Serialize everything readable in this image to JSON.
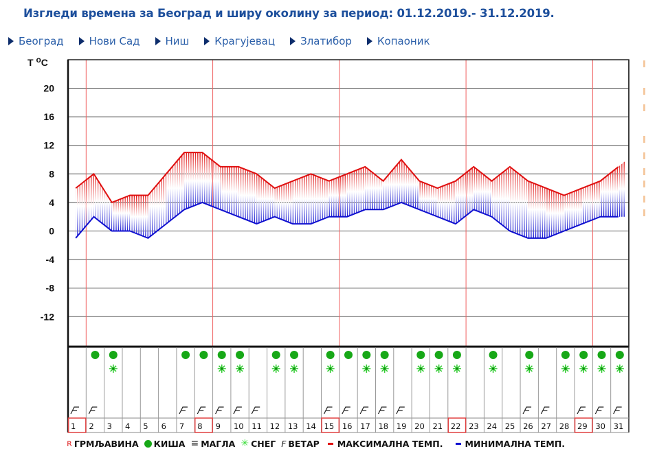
{
  "title": "Изгледи времена за Београд и ширу околину за период: 01.12.2019.- 31.12.2019.",
  "nav": {
    "items": [
      {
        "label": "Београд"
      },
      {
        "label": "Нови Сад"
      },
      {
        "label": "Ниш"
      },
      {
        "label": "Крагујевац"
      },
      {
        "label": "Златибор"
      },
      {
        "label": "Копаоник"
      }
    ]
  },
  "legend": {
    "thunder": "ГРМЉАВИНА",
    "rain": "КИША",
    "fog": "МАГЛА",
    "snow": "СНЕГ",
    "wind": "ВЕТАР",
    "max_temp": "МАКСИМАЛНА ТЕМП.",
    "min_temp": "МИНИМАЛНА ТЕМП."
  },
  "colors": {
    "title": "#1d4f9c",
    "max_line": "#e01010",
    "min_line": "#1010d0",
    "sunday_marker": "#f06060",
    "rain": "#17a817",
    "snow": "#33cc33"
  },
  "chart_data": {
    "type": "area",
    "title": "Изгледи времена за Београд и ширу околину за период: 01.12.2019.- 31.12.2019.",
    "ylabel": "T °C",
    "xlabel": "",
    "ylim": [
      -16,
      24
    ],
    "yticks": [
      20,
      16,
      12,
      8,
      4,
      0,
      -4,
      -8,
      -12
    ],
    "grid": true,
    "legend_position": "bottom",
    "categories": [
      "1",
      "2",
      "3",
      "4",
      "5",
      "6",
      "7",
      "8",
      "9",
      "10",
      "11",
      "12",
      "13",
      "14",
      "15",
      "16",
      "17",
      "18",
      "19",
      "20",
      "21",
      "22",
      "23",
      "24",
      "25",
      "26",
      "27",
      "28",
      "29",
      "30",
      "31"
    ],
    "series": [
      {
        "name": "МАКСИМАЛНА ТЕМП.",
        "values": [
          6,
          8,
          4,
          5,
          5,
          8,
          11,
          11,
          9,
          9,
          8,
          6,
          7,
          8,
          7,
          8,
          9,
          7,
          10,
          7,
          6,
          7,
          9,
          7,
          9,
          7,
          6,
          5,
          6,
          7,
          9
        ]
      },
      {
        "name": "МИНИМАЛНА ТЕМП.",
        "values": [
          -1,
          2,
          0,
          0,
          -1,
          1,
          3,
          4,
          3,
          2,
          1,
          2,
          1,
          1,
          2,
          2,
          3,
          3,
          4,
          3,
          2,
          1,
          3,
          2,
          0,
          -1,
          -1,
          0,
          1,
          2,
          2
        ]
      }
    ],
    "highlighted_days": [
      1,
      8,
      15,
      22,
      29
    ],
    "rain": [
      2,
      3,
      7,
      8,
      9,
      10,
      12,
      13,
      15,
      16,
      17,
      18,
      20,
      21,
      22,
      24,
      26,
      28,
      29,
      30,
      31
    ],
    "snow": [
      3,
      9,
      10,
      12,
      13,
      15,
      17,
      18,
      20,
      21,
      22,
      24,
      26,
      28,
      29,
      30,
      31
    ],
    "wind": [
      1,
      2,
      7,
      8,
      9,
      10,
      11,
      15,
      16,
      17,
      18,
      19,
      26,
      27,
      29,
      30,
      31
    ]
  }
}
